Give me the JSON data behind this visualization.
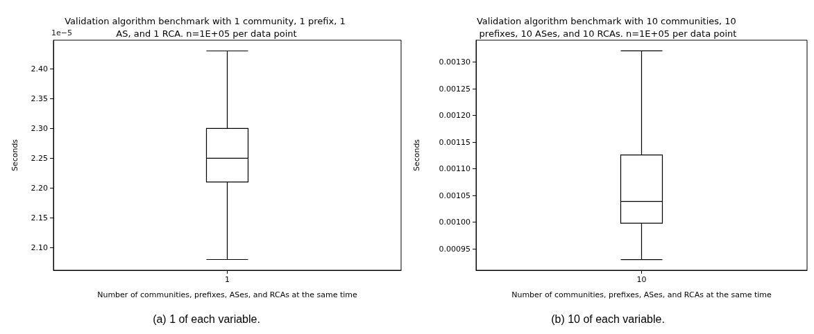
{
  "chart_data": [
    {
      "type": "box",
      "title": "Validation algorithm benchmark with 1 community, 1 prefix, 1 AS, and 1 RCA. n=1E+05 per data point",
      "xlabel": "Number of communities, prefixes, ASes, and RCAs at the same time",
      "ylabel": "Seconds",
      "categories": [
        "1"
      ],
      "series": [
        {
          "color": "#000000",
          "boxes": [
            {
              "low": 2.08,
              "q1": 2.21,
              "median": 2.25,
              "q3": 2.3,
              "high": 2.43
            }
          ]
        }
      ],
      "ylim": [
        2.062,
        2.448
      ],
      "yticks": [
        {
          "value": 2.1,
          "label": "2.10"
        },
        {
          "value": 2.15,
          "label": "2.15"
        },
        {
          "value": 2.2,
          "label": "2.20"
        },
        {
          "value": 2.25,
          "label": "2.25"
        },
        {
          "value": 2.3,
          "label": "2.30"
        },
        {
          "value": 2.35,
          "label": "2.35"
        },
        {
          "value": 2.4,
          "label": "2.40"
        }
      ],
      "annotations": [
        "1e−5",
        "(a) 1 of each variable."
      ],
      "grid": false
    },
    {
      "type": "box",
      "title": "Validation algorithm benchmark with 10 communities, 10 prefixes, 10 ASes, and 10 RCAs. n=1E+05 per data point",
      "xlabel": "Number of communities, prefixes, ASes, and RCAs at the same time",
      "ylabel": "Seconds",
      "categories": [
        "10"
      ],
      "series": [
        {
          "color": "#000000",
          "boxes": [
            {
              "low": 0.00093,
              "q1": 0.000998,
              "median": 0.001039,
              "q3": 0.001126,
              "high": 0.001321
            }
          ]
        }
      ],
      "ylim": [
        0.00091,
        0.001341
      ],
      "yticks": [
        {
          "value": 0.00095,
          "label": "0.00095"
        },
        {
          "value": 0.001,
          "label": "0.00100"
        },
        {
          "value": 0.00105,
          "label": "0.00105"
        },
        {
          "value": 0.0011,
          "label": "0.00110"
        },
        {
          "value": 0.00115,
          "label": "0.00115"
        },
        {
          "value": 0.0012,
          "label": "0.00120"
        },
        {
          "value": 0.00125,
          "label": "0.00125"
        },
        {
          "value": 0.0013,
          "label": "0.00130"
        }
      ],
      "annotations": [
        "(b) 10 of each variable."
      ],
      "grid": false
    }
  ]
}
